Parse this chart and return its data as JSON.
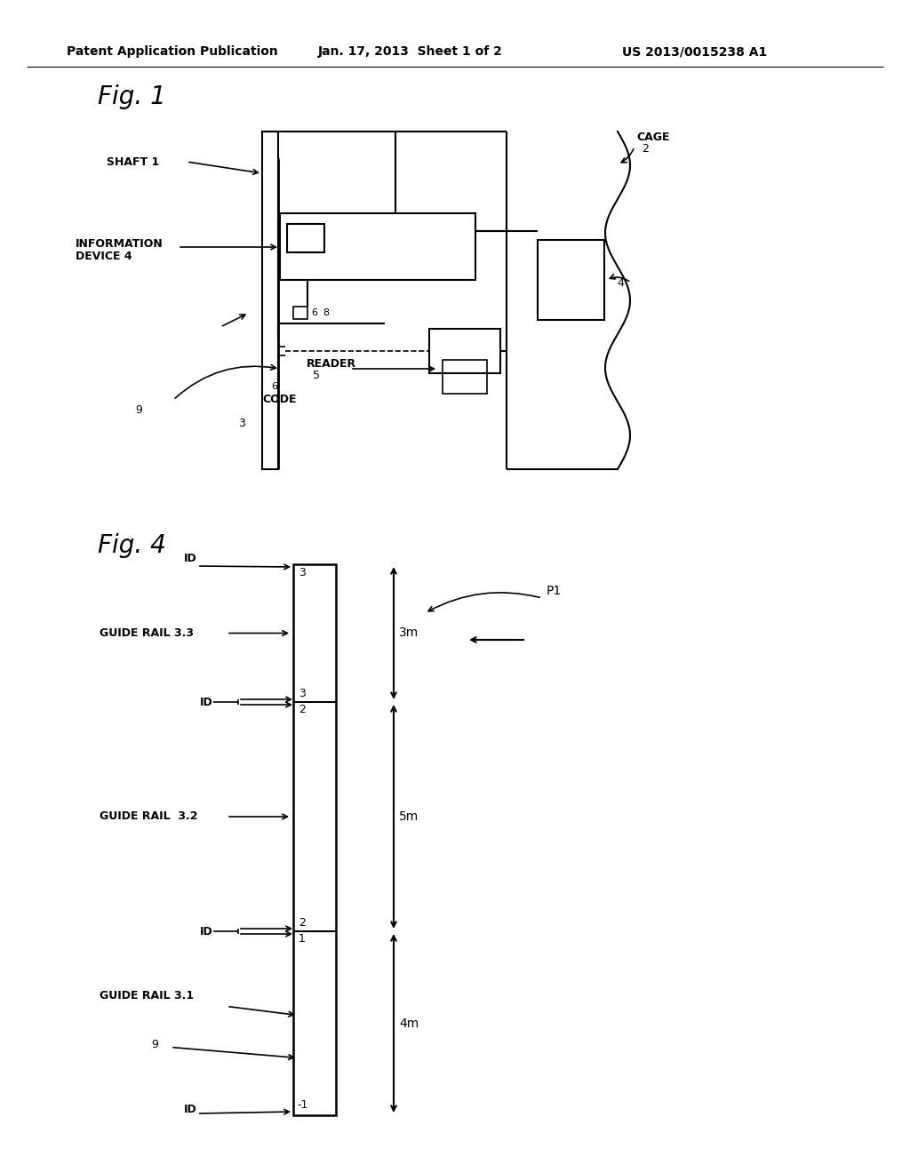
{
  "background_color": "#ffffff",
  "header_text": "Patent Application Publication",
  "header_date": "Jan. 17, 2013  Sheet 1 of 2",
  "header_patent": "US 2013/0015238 A1",
  "fig1_label": "Fig. 1",
  "fig4_label": "Fig. 4",
  "line_color": "#000000",
  "text_color": "#000000"
}
